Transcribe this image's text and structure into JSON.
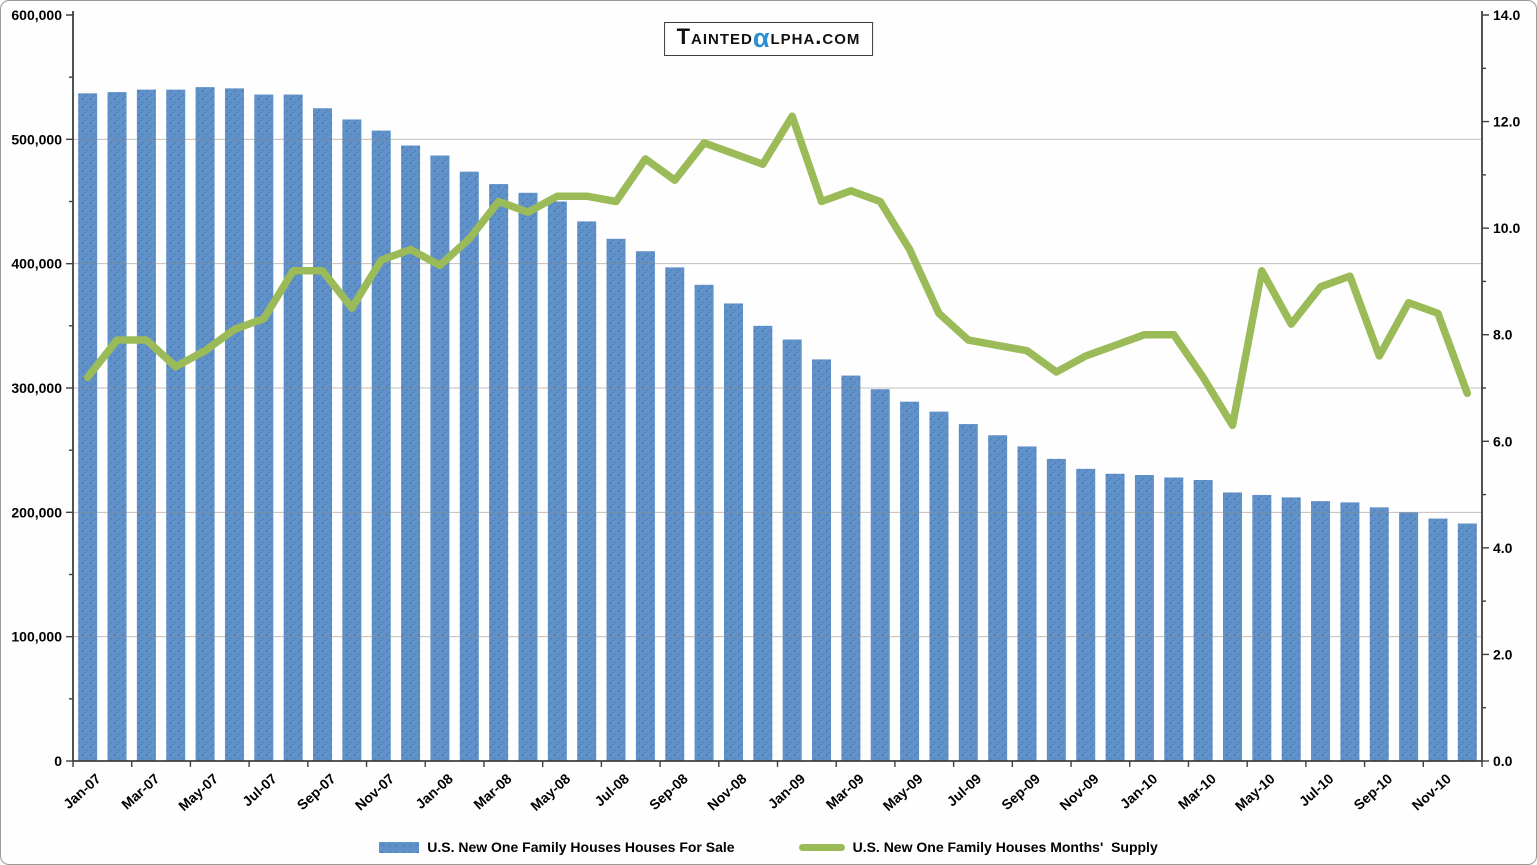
{
  "branding": {
    "logo_prefix": "Tainted",
    "logo_alpha": "α",
    "logo_suffix": "lpha.com"
  },
  "legend": {
    "bar_label": "U.S. New One Family Houses Houses For Sale",
    "line_label": "U.S. New One Family Houses Months'  Supply"
  },
  "colors": {
    "bar_fill": "#6191c9",
    "bar_dot": "#4f7fba",
    "line_green": "#9bbb59",
    "axis": "#3f3f3f",
    "grid": "#8c8c8c",
    "label_text": "#000000",
    "alpha_blue": "#2a8fd2"
  },
  "chart_data": {
    "type": "bar+line combo",
    "x": [
      "Jan-07",
      "Feb-07",
      "Mar-07",
      "Apr-07",
      "May-07",
      "Jun-07",
      "Jul-07",
      "Aug-07",
      "Sep-07",
      "Oct-07",
      "Nov-07",
      "Dec-07",
      "Jan-08",
      "Feb-08",
      "Mar-08",
      "Apr-08",
      "May-08",
      "Jun-08",
      "Jul-08",
      "Aug-08",
      "Sep-08",
      "Oct-08",
      "Nov-08",
      "Dec-08",
      "Jan-09",
      "Feb-09",
      "Mar-09",
      "Apr-09",
      "May-09",
      "Jun-09",
      "Jul-09",
      "Aug-09",
      "Sep-09",
      "Oct-09",
      "Nov-09",
      "Dec-09",
      "Jan-10",
      "Feb-10",
      "Mar-10",
      "Apr-10",
      "May-10",
      "Jun-10",
      "Jul-10",
      "Aug-10",
      "Sep-10",
      "Oct-10",
      "Nov-10",
      "Dec-10"
    ],
    "x_label_every": 2,
    "series": [
      {
        "name": "U.S. New One Family Houses Houses For Sale",
        "type": "bar",
        "axis": "left",
        "color": "#6191c9",
        "values": [
          537000,
          538000,
          540000,
          540000,
          542000,
          541000,
          536000,
          536000,
          525000,
          516000,
          507000,
          495000,
          487000,
          474000,
          464000,
          457000,
          450000,
          434000,
          420000,
          410000,
          397000,
          383000,
          368000,
          350000,
          339000,
          323000,
          310000,
          299000,
          289000,
          281000,
          271000,
          262000,
          253000,
          243000,
          235000,
          231000,
          230000,
          228000,
          226000,
          216000,
          214000,
          212000,
          209000,
          208000,
          204000,
          200000,
          195000,
          191000
        ]
      },
      {
        "name": "U.S. New One Family Houses Months'  Supply",
        "type": "line",
        "axis": "right",
        "color": "#9bbb59",
        "values": [
          7.2,
          7.9,
          7.9,
          7.4,
          7.7,
          8.1,
          8.3,
          9.2,
          9.2,
          8.5,
          9.4,
          9.6,
          9.3,
          9.8,
          10.5,
          10.3,
          10.6,
          10.6,
          10.5,
          11.3,
          10.9,
          11.6,
          11.4,
          11.2,
          12.1,
          10.5,
          10.7,
          10.5,
          9.6,
          8.4,
          7.9,
          7.8,
          7.7,
          7.3,
          7.6,
          7.8,
          8.0,
          8.0,
          7.2,
          6.3,
          9.2,
          8.2,
          8.9,
          9.1,
          7.6,
          8.6,
          8.4,
          6.9
        ]
      }
    ],
    "left_axis": {
      "min": 0,
      "max": 600000,
      "major_step": 100000,
      "minor_step": 50000
    },
    "right_axis": {
      "min": 0,
      "max": 14,
      "major_step": 2,
      "minor_step": 1
    },
    "grid": "horizontal major only",
    "legend_position": "bottom center",
    "title": ""
  }
}
